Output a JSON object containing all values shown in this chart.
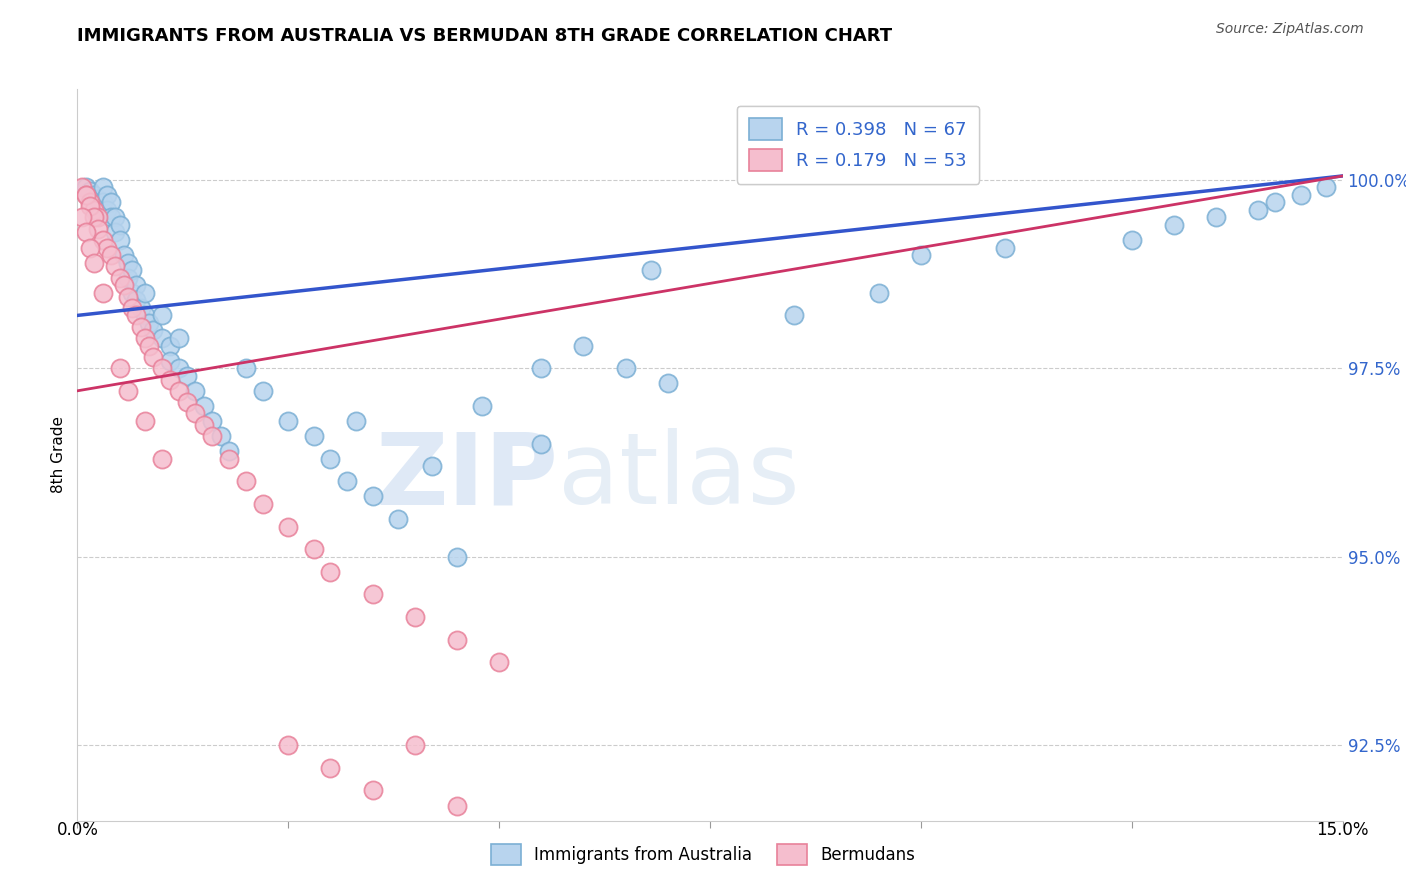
{
  "title": "IMMIGRANTS FROM AUSTRALIA VS BERMUDAN 8TH GRADE CORRELATION CHART",
  "source": "Source: ZipAtlas.com",
  "ylabel": "8th Grade",
  "ytick_labels": [
    "92.5%",
    "95.0%",
    "97.5%",
    "100.0%"
  ],
  "ytick_values": [
    92.5,
    95.0,
    97.5,
    100.0
  ],
  "xmin": 0.0,
  "xmax": 15.0,
  "ymin": 91.5,
  "ymax": 101.2,
  "legend_blue_label": "R = 0.398   N = 67",
  "legend_pink_label": "R = 0.179   N = 53",
  "legend_bottom_blue": "Immigrants from Australia",
  "legend_bottom_pink": "Bermudans",
  "blue_edge": "#7bafd4",
  "blue_fill": "#b8d4ee",
  "pink_edge": "#e8819a",
  "pink_fill": "#f5bece",
  "line_blue": "#3355cc",
  "line_pink": "#cc3366",
  "watermark_zip": "ZIP",
  "watermark_atlas": "atlas",
  "blue_x": [
    0.1,
    0.15,
    0.2,
    0.25,
    0.3,
    0.3,
    0.35,
    0.35,
    0.4,
    0.4,
    0.45,
    0.45,
    0.5,
    0.5,
    0.55,
    0.6,
    0.6,
    0.65,
    0.65,
    0.7,
    0.7,
    0.75,
    0.8,
    0.8,
    0.85,
    0.9,
    1.0,
    1.0,
    1.1,
    1.1,
    1.2,
    1.2,
    1.3,
    1.4,
    1.5,
    1.6,
    1.7,
    1.8,
    2.0,
    2.2,
    2.5,
    2.8,
    3.0,
    3.2,
    3.5,
    3.8,
    4.2,
    4.8,
    5.5,
    6.0,
    6.5,
    7.0,
    8.5,
    9.5,
    10.0,
    11.0,
    12.5,
    13.0,
    13.5,
    14.0,
    14.2,
    14.5,
    14.8,
    5.5,
    6.8,
    4.5,
    3.3
  ],
  "blue_y": [
    99.9,
    99.85,
    99.8,
    99.75,
    99.9,
    99.7,
    99.8,
    99.6,
    99.7,
    99.5,
    99.5,
    99.3,
    99.4,
    99.2,
    99.0,
    98.9,
    98.7,
    98.8,
    98.5,
    98.6,
    98.4,
    98.3,
    98.5,
    98.2,
    98.1,
    98.0,
    98.2,
    97.9,
    97.8,
    97.6,
    97.9,
    97.5,
    97.4,
    97.2,
    97.0,
    96.8,
    96.6,
    96.4,
    97.5,
    97.2,
    96.8,
    96.6,
    96.3,
    96.0,
    95.8,
    95.5,
    96.2,
    97.0,
    97.5,
    97.8,
    97.5,
    97.3,
    98.2,
    98.5,
    99.0,
    99.1,
    99.2,
    99.4,
    99.5,
    99.6,
    99.7,
    99.8,
    99.9,
    96.5,
    98.8,
    95.0,
    96.8
  ],
  "pink_x": [
    0.05,
    0.1,
    0.15,
    0.2,
    0.25,
    0.1,
    0.15,
    0.2,
    0.25,
    0.3,
    0.35,
    0.4,
    0.45,
    0.5,
    0.55,
    0.6,
    0.65,
    0.7,
    0.75,
    0.8,
    0.85,
    0.9,
    1.0,
    1.1,
    1.2,
    1.3,
    1.4,
    1.5,
    1.6,
    1.8,
    2.0,
    2.2,
    2.5,
    2.8,
    3.0,
    3.5,
    4.0,
    4.5,
    5.0,
    0.05,
    0.1,
    0.15,
    0.2,
    0.3,
    0.5,
    0.6,
    0.8,
    1.0,
    2.5,
    3.0,
    3.5,
    4.0,
    4.5
  ],
  "pink_y": [
    99.9,
    99.8,
    99.7,
    99.6,
    99.5,
    99.8,
    99.65,
    99.5,
    99.35,
    99.2,
    99.1,
    99.0,
    98.85,
    98.7,
    98.6,
    98.45,
    98.3,
    98.2,
    98.05,
    97.9,
    97.8,
    97.65,
    97.5,
    97.35,
    97.2,
    97.05,
    96.9,
    96.75,
    96.6,
    96.3,
    96.0,
    95.7,
    95.4,
    95.1,
    94.8,
    94.5,
    94.2,
    93.9,
    93.6,
    99.5,
    99.3,
    99.1,
    98.9,
    98.5,
    97.5,
    97.2,
    96.8,
    96.3,
    92.5,
    92.2,
    91.9,
    92.5,
    91.7
  ],
  "blue_line_x": [
    0.0,
    15.0
  ],
  "blue_line_y": [
    98.2,
    100.05
  ],
  "pink_line_x": [
    0.0,
    15.0
  ],
  "pink_line_y": [
    97.2,
    100.05
  ]
}
